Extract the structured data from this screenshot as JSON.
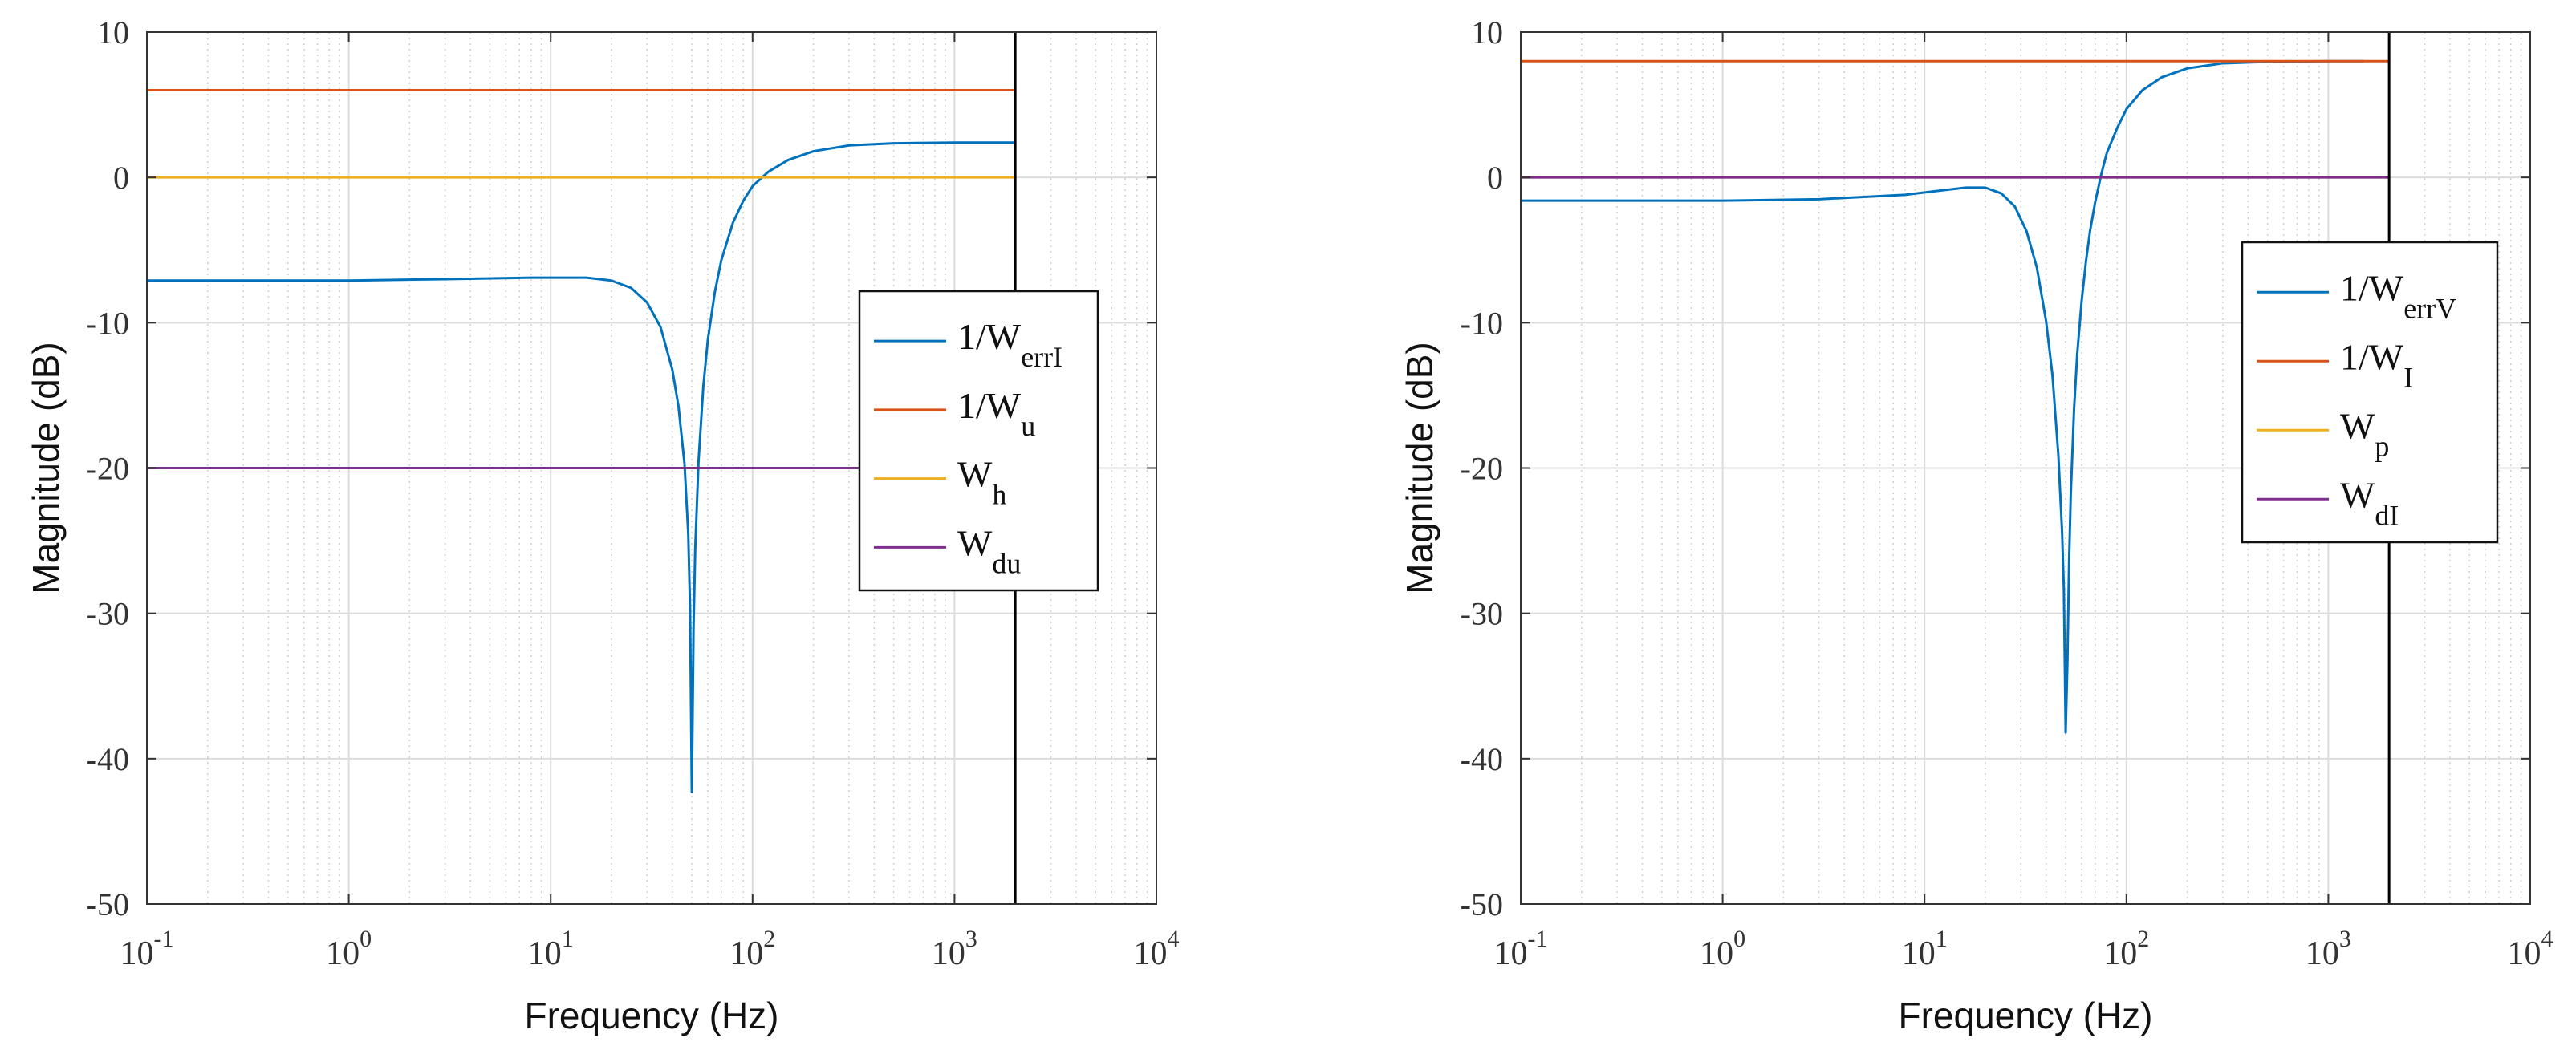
{
  "chart_data": [
    {
      "type": "line",
      "xscale": "log",
      "xlim": [
        0.1,
        10000
      ],
      "ylim": [
        -50,
        10
      ],
      "xlabel": "Frequency  (Hz)",
      "ylabel": "Magnitude (dB)",
      "title": "",
      "grid": true,
      "x_ticks": [
        {
          "base": "10",
          "exp": "-1"
        },
        {
          "base": "10",
          "exp": "0"
        },
        {
          "base": "10",
          "exp": "1"
        },
        {
          "base": "10",
          "exp": "2"
        },
        {
          "base": "10",
          "exp": "3"
        },
        {
          "base": "10",
          "exp": "4"
        }
      ],
      "y_ticks": [
        "10",
        "0",
        "-10",
        "-20",
        "-30",
        "-40",
        "-50"
      ],
      "vline_x": 2000,
      "legend_position": "center-right",
      "series": [
        {
          "name": "1/W_errI",
          "label_main": "1/W",
          "label_sub": "errI",
          "color": "#0072BD",
          "x": [
            0.1,
            0.3,
            1,
            3,
            8,
            15,
            20,
            25,
            30,
            35,
            40,
            43,
            46,
            48,
            49,
            50,
            51,
            52,
            54,
            57,
            60,
            65,
            70,
            80,
            90,
            100,
            120,
            150,
            200,
            300,
            500,
            1000,
            2000
          ],
          "y": [
            -7.1,
            -7.1,
            -7.1,
            -7.0,
            -6.9,
            -6.9,
            -7.1,
            -7.6,
            -8.6,
            -10.3,
            -13.2,
            -15.8,
            -19.7,
            -24.5,
            -29.5,
            -42.3,
            -31.0,
            -25.5,
            -19.5,
            -14.4,
            -11.2,
            -7.9,
            -5.7,
            -3.1,
            -1.6,
            -0.6,
            0.4,
            1.2,
            1.8,
            2.2,
            2.35,
            2.4,
            2.4
          ]
        },
        {
          "name": "1/W_u",
          "label_main": "1/W",
          "label_sub": "u",
          "color": "#D95319",
          "x": [
            0.1,
            2000
          ],
          "y": [
            6,
            6
          ]
        },
        {
          "name": "W_h",
          "label_main": "W",
          "label_sub": "h",
          "color": "#EDB120",
          "x": [
            0.1,
            2000
          ],
          "y": [
            0,
            0
          ]
        },
        {
          "name": "W_du",
          "label_main": "W",
          "label_sub": "du",
          "color": "#7E2F8E",
          "x": [
            0.1,
            2000
          ],
          "y": [
            -20,
            -20
          ]
        }
      ]
    },
    {
      "type": "line",
      "xscale": "log",
      "xlim": [
        0.1,
        10000
      ],
      "ylim": [
        -50,
        10
      ],
      "xlabel": "Frequency  (Hz)",
      "ylabel": "Magnitude (dB)",
      "title": "",
      "grid": true,
      "x_ticks": [
        {
          "base": "10",
          "exp": "-1"
        },
        {
          "base": "10",
          "exp": "0"
        },
        {
          "base": "10",
          "exp": "1"
        },
        {
          "base": "10",
          "exp": "2"
        },
        {
          "base": "10",
          "exp": "3"
        },
        {
          "base": "10",
          "exp": "4"
        }
      ],
      "y_ticks": [
        "10",
        "0",
        "-10",
        "-20",
        "-30",
        "-40",
        "-50"
      ],
      "vline_x": 2000,
      "legend_position": "center-right",
      "series": [
        {
          "name": "1/W_errV",
          "label_main": "1/W",
          "label_sub": "errV",
          "color": "#0072BD",
          "x": [
            0.1,
            0.3,
            1,
            3,
            8,
            12,
            16,
            20,
            24,
            28,
            32,
            36,
            40,
            43,
            46,
            48,
            49,
            50,
            51,
            52,
            53,
            55,
            57,
            60,
            63,
            66,
            70,
            75,
            80,
            90,
            100,
            120,
            150,
            200,
            300,
            500,
            1000,
            1500
          ],
          "y": [
            -1.6,
            -1.6,
            -1.6,
            -1.5,
            -1.2,
            -0.9,
            -0.7,
            -0.7,
            -1.1,
            -2.0,
            -3.7,
            -6.2,
            -9.9,
            -13.6,
            -19.1,
            -24.4,
            -28.4,
            -38.2,
            -33.5,
            -26.4,
            -21.8,
            -16.0,
            -12.2,
            -8.5,
            -5.8,
            -3.7,
            -1.7,
            0.2,
            1.7,
            3.4,
            4.7,
            6.0,
            6.9,
            7.5,
            7.85,
            7.95,
            8.0,
            8.0
          ]
        },
        {
          "name": "1/W_I",
          "label_main": "1/W",
          "label_sub": "I",
          "color": "#D95319",
          "x": [
            0.1,
            2000
          ],
          "y": [
            8,
            8
          ]
        },
        {
          "name": "W_p",
          "label_main": "W",
          "label_sub": "p",
          "color": "#EDB120",
          "x": [
            0.1,
            2000
          ],
          "y": [
            0,
            0
          ]
        },
        {
          "name": "W_dI",
          "label_main": "W",
          "label_sub": "dI",
          "color": "#7E2F8E",
          "x": [
            0.1,
            2000
          ],
          "y": [
            0,
            0
          ]
        }
      ]
    }
  ]
}
